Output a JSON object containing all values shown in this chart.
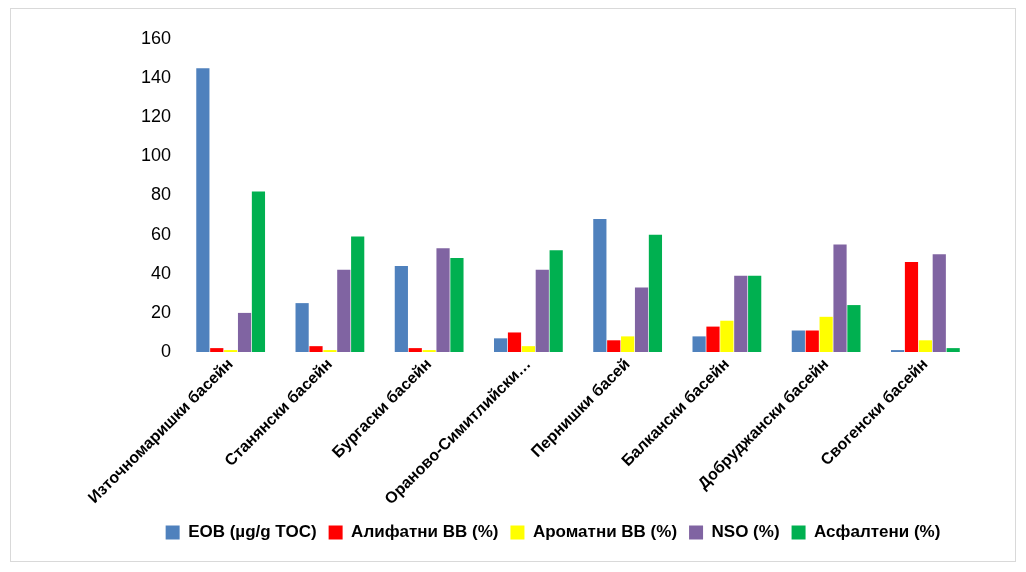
{
  "chart_data": {
    "type": "bar",
    "categories": [
      "Източномаришки басейн",
      "Станянски басейн",
      "Бургаски басейн",
      "Ораново-Симитлийски…",
      "Пернишки басей",
      "Балкански басейн",
      "Добруджански басейн",
      "Свогенски басейн"
    ],
    "series": [
      {
        "name": "ЕОВ (µg/g TOC)",
        "color": "#4f81bd",
        "values": [
          145,
          25,
          44,
          7,
          68,
          8,
          11,
          1
        ]
      },
      {
        "name": "Алифатни ВВ (%)",
        "color": "#ff0000",
        "values": [
          2,
          3,
          2,
          10,
          6,
          13,
          11,
          46
        ]
      },
      {
        "name": "Ароматни ВВ (%)",
        "color": "#ffff00",
        "values": [
          1,
          1,
          1,
          3,
          8,
          16,
          18,
          6
        ]
      },
      {
        "name": "NSO (%)",
        "color": "#8064a2",
        "values": [
          20,
          42,
          53,
          42,
          33,
          39,
          55,
          50
        ]
      },
      {
        "name": "Асфалтени (%)",
        "color": "#00b050",
        "values": [
          82,
          59,
          48,
          52,
          60,
          39,
          24,
          2
        ]
      }
    ],
    "ylim": [
      0,
      160
    ],
    "yticks": [
      0,
      20,
      40,
      60,
      80,
      100,
      120,
      140,
      160
    ],
    "grid": false,
    "legend": "bottom"
  }
}
